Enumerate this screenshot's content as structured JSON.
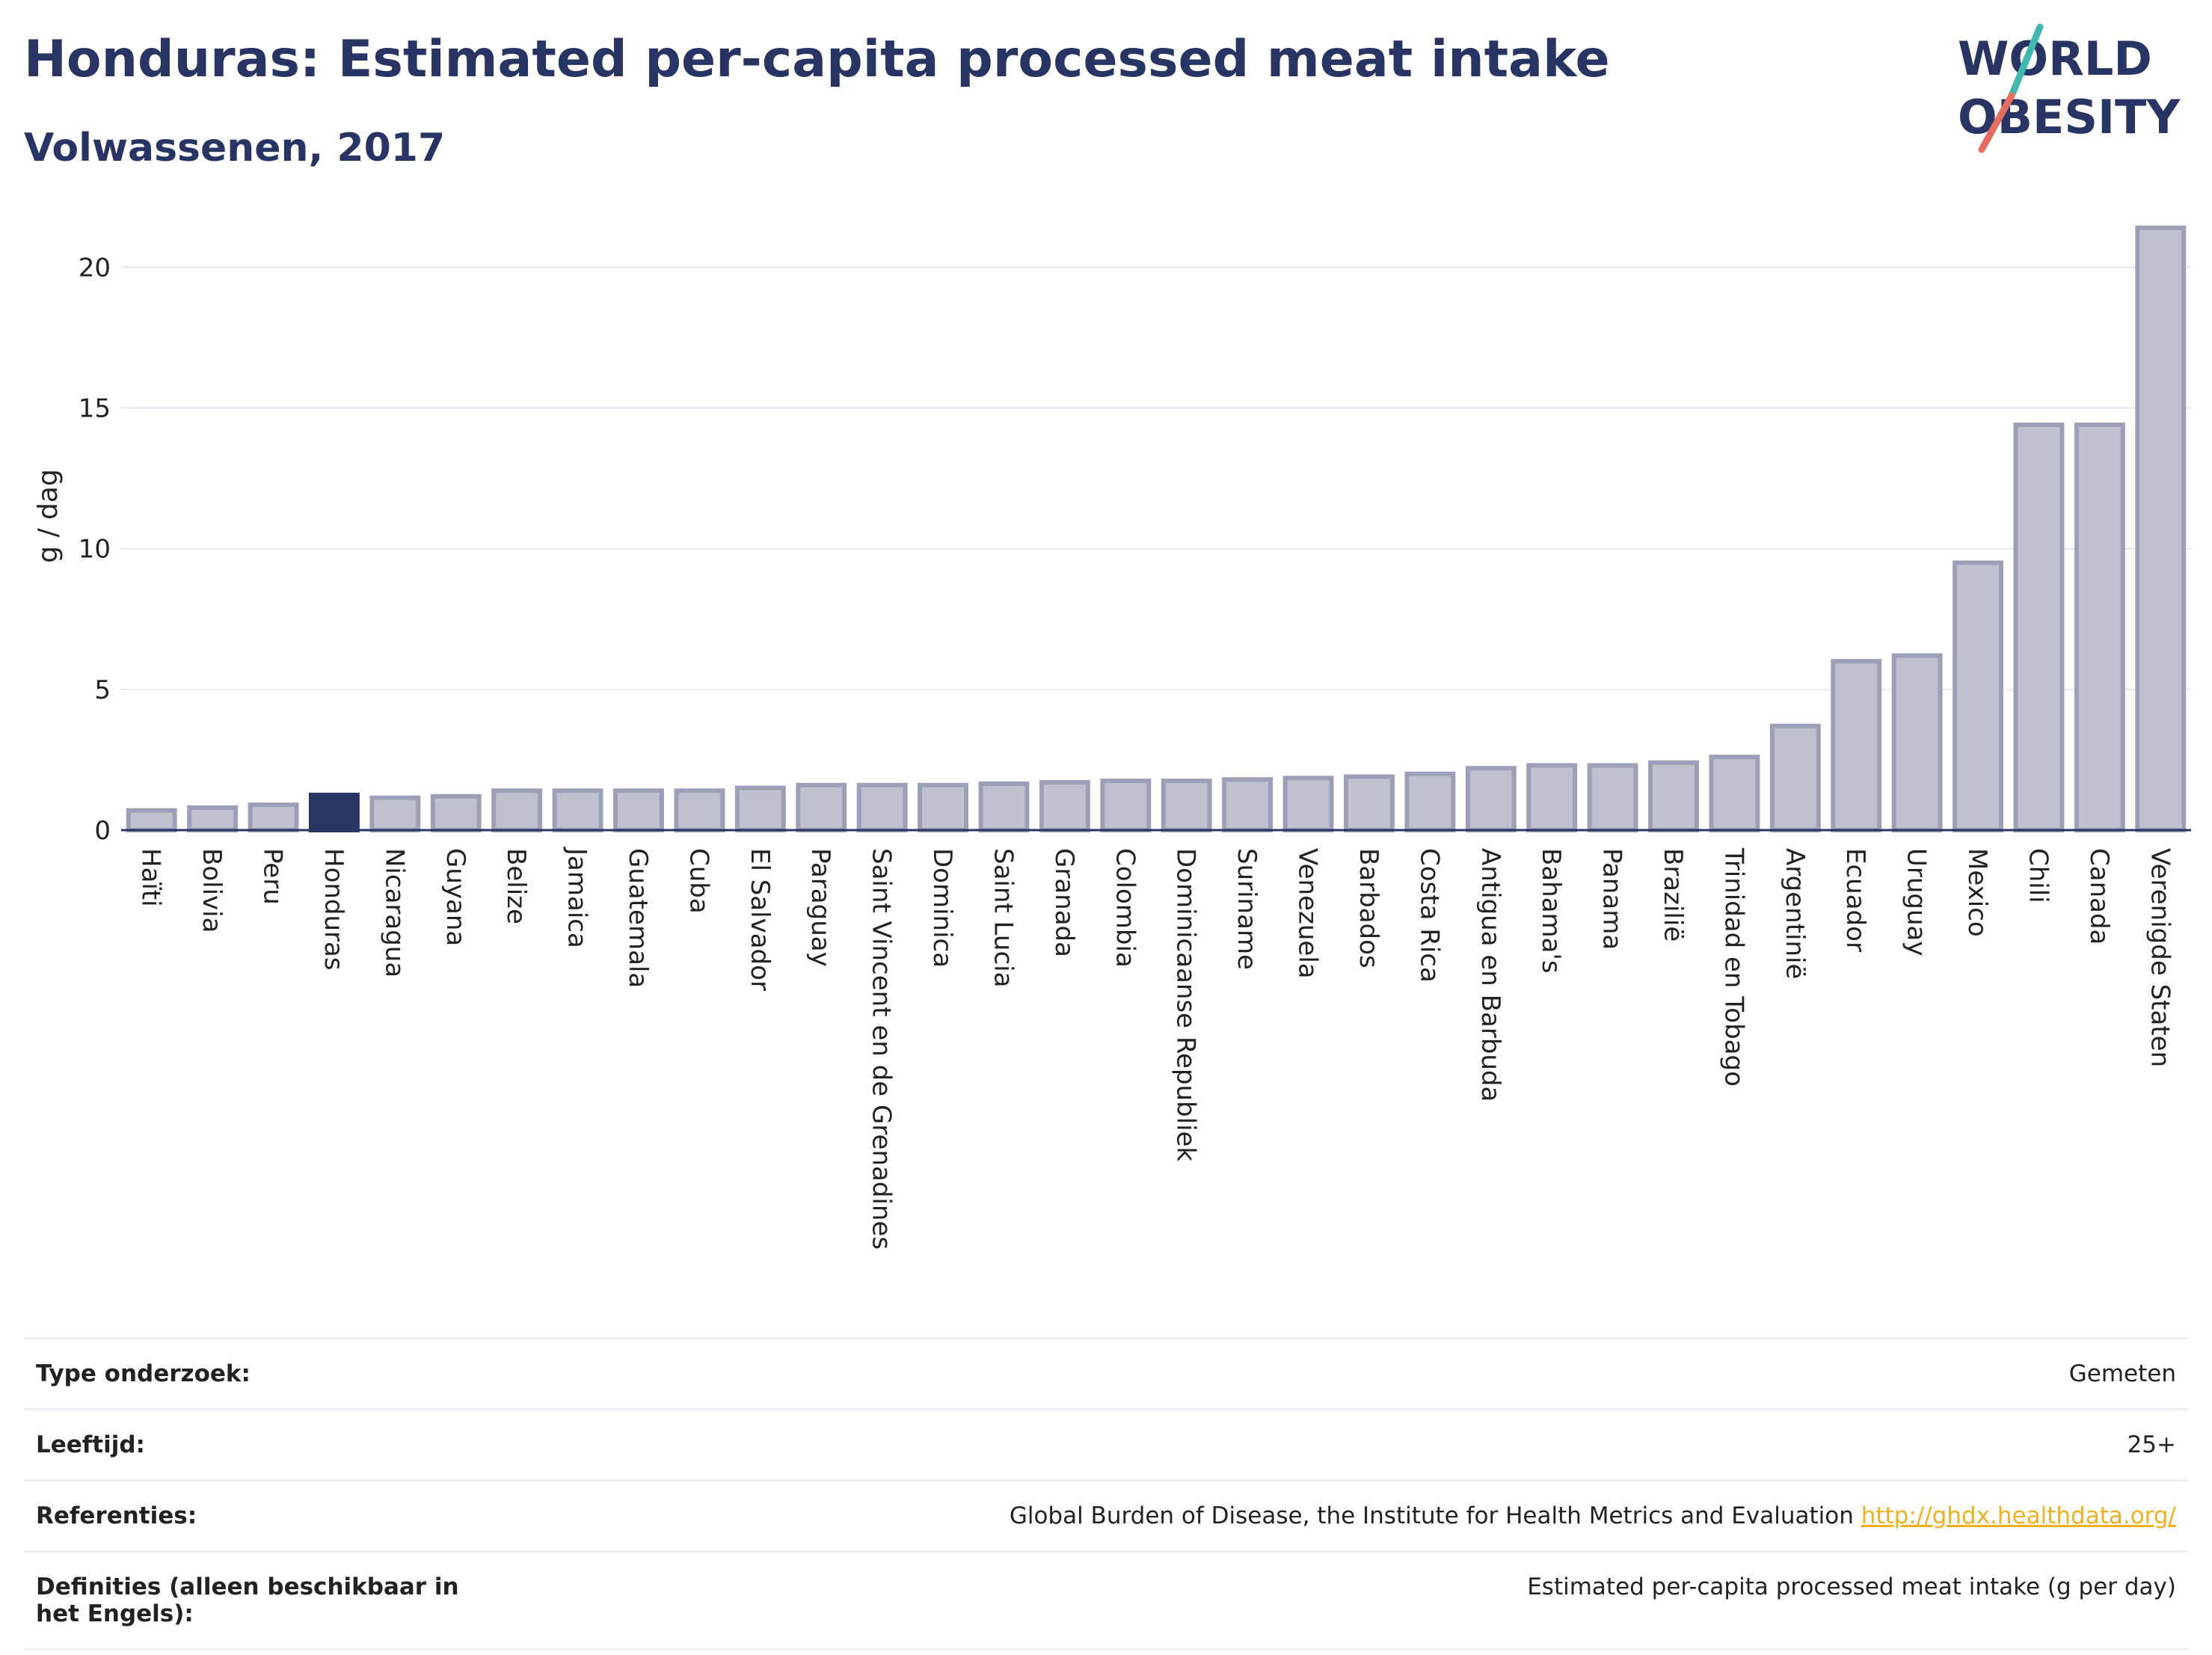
{
  "header": {
    "title": "Honduras: Estimated per-capita processed meat intake",
    "subtitle": "Volwassenen, 2017"
  },
  "logo": {
    "line1": "WORLD",
    "line2": "OBESITY"
  },
  "colors": {
    "highlight": "#283464",
    "bar_fill": "#bfc2ce",
    "bar_stroke": "#9ba0b8",
    "title": "#283464",
    "link": "#f2b01e"
  },
  "chart_data": {
    "type": "bar",
    "title": "Honduras: Estimated per-capita processed meat intake",
    "subtitle": "Volwassenen, 2017",
    "xlabel": "",
    "ylabel": "g / dag",
    "ylim": [
      0,
      22
    ],
    "yticks": [
      0,
      5,
      10,
      15,
      20
    ],
    "grid": true,
    "highlight": "Honduras",
    "categories": [
      "Haïti",
      "Bolivia",
      "Peru",
      "Honduras",
      "Nicaragua",
      "Guyana",
      "Belize",
      "Jamaica",
      "Guatemala",
      "Cuba",
      "El Salvador",
      "Paraguay",
      "Saint Vincent en de Grenadines",
      "Dominica",
      "Saint Lucia",
      "Granada",
      "Colombia",
      "Dominicaanse Republiek",
      "Suriname",
      "Venezuela",
      "Barbados",
      "Costa Rica",
      "Antigua en Barbuda",
      "Bahama's",
      "Panama",
      "Brazilië",
      "Trinidad en Tobago",
      "Argentinië",
      "Ecuador",
      "Uruguay",
      "Mexico",
      "Chili",
      "Canada",
      "Verenigde Staten"
    ],
    "values": [
      0.7,
      0.8,
      0.9,
      1.25,
      1.15,
      1.2,
      1.4,
      1.4,
      1.4,
      1.4,
      1.5,
      1.6,
      1.6,
      1.6,
      1.65,
      1.7,
      1.75,
      1.75,
      1.8,
      1.85,
      1.9,
      2.0,
      2.2,
      2.3,
      2.3,
      2.4,
      2.6,
      3.7,
      6.0,
      6.2,
      9.5,
      14.4,
      14.4,
      21.4
    ]
  },
  "info": [
    {
      "label": "Type onderzoek:",
      "value": "Gemeten"
    },
    {
      "label": "Leeftijd:",
      "value": "25+"
    },
    {
      "label": "Referenties:",
      "value": "Global Burden of Disease, the Institute for Health Metrics and Evaluation",
      "link": "http://ghdx.healthdata.org/"
    },
    {
      "label": "Definities (alleen beschikbaar in het Engels):",
      "value": "Estimated per-capita processed meat intake (g per day)"
    }
  ]
}
